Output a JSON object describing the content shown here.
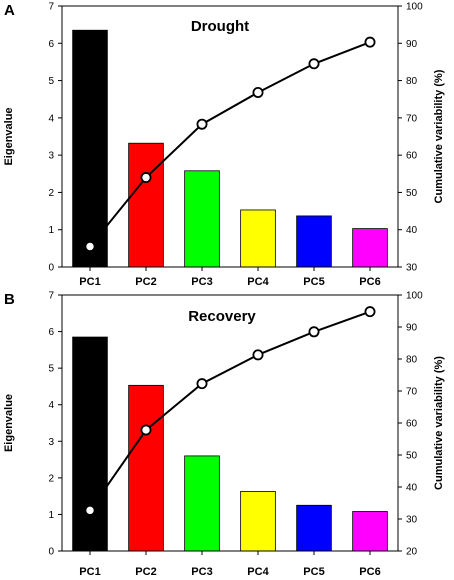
{
  "chart_data": [
    {
      "type": "bar",
      "panel_letter": "A",
      "title": "Drought",
      "categories": [
        "PC1",
        "PC2",
        "PC3",
        "PC4",
        "PC5",
        "PC6"
      ],
      "bar_colors": [
        "#000000",
        "#ff0000",
        "#00ff00",
        "#ffff00",
        "#0000ff",
        "#ff00ff"
      ],
      "series": [
        {
          "axis": "left",
          "kind": "bar",
          "values": [
            6.35,
            3.32,
            2.58,
            1.53,
            1.37,
            1.03
          ]
        },
        {
          "axis": "right",
          "kind": "line-markers",
          "values": [
            35.5,
            54.0,
            68.3,
            76.8,
            84.5,
            90.3
          ]
        }
      ],
      "ylabel": "Eigenvalue",
      "ylim": [
        0,
        7
      ],
      "yticks": [
        "0",
        "1",
        "2",
        "3",
        "4",
        "5",
        "6",
        "7"
      ],
      "y2label": "Cumulative variability (%)",
      "y2lim": [
        30,
        100
      ],
      "y2ticks": [
        "30",
        "40",
        "50",
        "60",
        "70",
        "80",
        "90",
        "100"
      ],
      "grid": false
    },
    {
      "type": "bar",
      "panel_letter": "B",
      "title": "Recovery",
      "categories": [
        "PC1",
        "PC2",
        "PC3",
        "PC4",
        "PC5",
        "PC6"
      ],
      "bar_colors": [
        "#000000",
        "#ff0000",
        "#00ff00",
        "#ffff00",
        "#0000ff",
        "#ff00ff"
      ],
      "series": [
        {
          "axis": "left",
          "kind": "bar",
          "values": [
            5.85,
            4.53,
            2.6,
            1.63,
            1.25,
            1.08
          ]
        },
        {
          "axis": "right",
          "kind": "line-markers",
          "values": [
            32.7,
            57.8,
            72.3,
            81.3,
            88.5,
            94.8
          ]
        }
      ],
      "ylabel": "Eigenvalue",
      "ylim": [
        0,
        7
      ],
      "yticks": [
        "0",
        "1",
        "2",
        "3",
        "4",
        "5",
        "6",
        "7"
      ],
      "y2label": "Cumulative variability (%)",
      "y2lim": [
        20,
        100
      ],
      "y2ticks": [
        "20",
        "30",
        "40",
        "50",
        "60",
        "70",
        "80",
        "90",
        "100"
      ],
      "grid": false
    }
  ]
}
